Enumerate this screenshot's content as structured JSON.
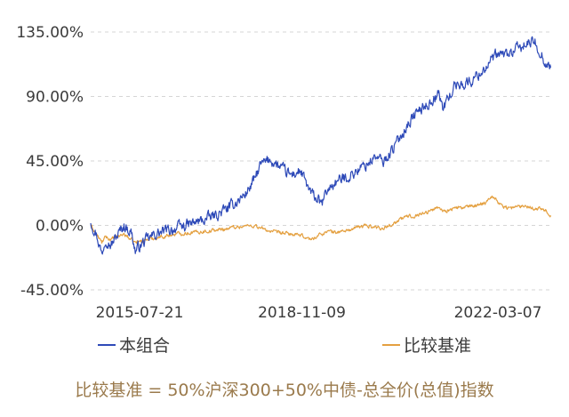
{
  "chart_data": {
    "type": "line",
    "y_ticks": [
      {
        "value": 135,
        "label": "135.00%"
      },
      {
        "value": 90,
        "label": "90.00%"
      },
      {
        "value": 45,
        "label": "45.00%"
      },
      {
        "value": 0,
        "label": "0.00%"
      },
      {
        "value": -45,
        "label": "-45.00%"
      }
    ],
    "x_ticks": [
      {
        "date": "2015-07-21",
        "label": "2015-07-21"
      },
      {
        "date": "2018-11-09",
        "label": "2018-11-09"
      },
      {
        "date": "2022-03-07",
        "label": "2022-03-07"
      }
    ],
    "ylim": [
      -45,
      135
    ],
    "grid": "horizontal dashed",
    "series": [
      {
        "name": "本组合",
        "color": "#2e4ab8",
        "points": [
          [
            "2015-05-01",
            3
          ],
          [
            "2015-06-01",
            -5
          ],
          [
            "2015-06-15",
            -10
          ],
          [
            "2015-07-08",
            -20
          ],
          [
            "2015-08-01",
            -8
          ],
          [
            "2015-09-01",
            -14
          ],
          [
            "2015-10-15",
            -6
          ],
          [
            "2015-11-20",
            0
          ],
          [
            "2016-01-05",
            -5
          ],
          [
            "2016-01-28",
            -18
          ],
          [
            "2016-03-15",
            -12
          ],
          [
            "2016-06-01",
            -6
          ],
          [
            "2016-09-01",
            -3
          ],
          [
            "2016-12-01",
            0
          ],
          [
            "2017-03-01",
            3
          ],
          [
            "2017-06-01",
            7
          ],
          [
            "2017-09-01",
            13
          ],
          [
            "2017-12-01",
            22
          ],
          [
            "2018-01-25",
            32
          ],
          [
            "2018-03-01",
            42
          ],
          [
            "2018-05-01",
            46
          ],
          [
            "2018-07-01",
            40
          ],
          [
            "2018-09-01",
            35
          ],
          [
            "2018-11-01",
            38
          ],
          [
            "2018-12-01",
            30
          ],
          [
            "2019-01-03",
            22
          ],
          [
            "2019-02-15",
            18
          ],
          [
            "2019-03-10",
            14
          ],
          [
            "2019-04-10",
            24
          ],
          [
            "2019-06-01",
            30
          ],
          [
            "2019-09-01",
            35
          ],
          [
            "2019-12-01",
            42
          ],
          [
            "2020-02-01",
            48
          ],
          [
            "2020-03-20",
            44
          ],
          [
            "2020-06-01",
            56
          ],
          [
            "2020-08-01",
            68
          ],
          [
            "2020-10-01",
            78
          ],
          [
            "2021-01-01",
            86
          ],
          [
            "2021-02-18",
            92
          ],
          [
            "2021-03-20",
            82
          ],
          [
            "2021-06-01",
            98
          ],
          [
            "2021-09-01",
            100
          ],
          [
            "2021-12-01",
            110
          ],
          [
            "2022-02-01",
            118
          ],
          [
            "2022-05-01",
            120
          ],
          [
            "2022-08-01",
            126
          ],
          [
            "2022-10-01",
            128
          ],
          [
            "2022-11-15",
            118
          ],
          [
            "2022-12-15",
            112
          ],
          [
            "2023-01-05",
            110
          ]
        ]
      },
      {
        "name": "比较基准",
        "color": "#e4a040",
        "points": [
          [
            "2015-05-01",
            0
          ],
          [
            "2015-06-15",
            -8
          ],
          [
            "2015-07-08",
            -12
          ],
          [
            "2015-08-01",
            -8
          ],
          [
            "2015-09-01",
            -10
          ],
          [
            "2015-11-20",
            -6
          ],
          [
            "2016-01-28",
            -12
          ],
          [
            "2016-04-01",
            -10
          ],
          [
            "2016-07-01",
            -8
          ],
          [
            "2016-10-01",
            -6
          ],
          [
            "2017-01-01",
            -5
          ],
          [
            "2017-04-01",
            -4
          ],
          [
            "2017-07-01",
            -3
          ],
          [
            "2017-10-01",
            -1
          ],
          [
            "2018-01-25",
            0
          ],
          [
            "2018-03-01",
            -2
          ],
          [
            "2018-06-01",
            -5
          ],
          [
            "2018-09-01",
            -6
          ],
          [
            "2018-12-01",
            -8
          ],
          [
            "2019-01-03",
            -10
          ],
          [
            "2019-04-10",
            -4
          ],
          [
            "2019-06-01",
            -5
          ],
          [
            "2019-09-01",
            -3
          ],
          [
            "2019-12-01",
            0
          ],
          [
            "2020-03-20",
            -2
          ],
          [
            "2020-06-01",
            2
          ],
          [
            "2020-08-01",
            6
          ],
          [
            "2020-10-01",
            7
          ],
          [
            "2021-01-01",
            10
          ],
          [
            "2021-02-18",
            13
          ],
          [
            "2021-03-20",
            10
          ],
          [
            "2021-06-01",
            12
          ],
          [
            "2021-09-01",
            13
          ],
          [
            "2021-12-01",
            16
          ],
          [
            "2022-01-15",
            21
          ],
          [
            "2022-03-07",
            14
          ],
          [
            "2022-05-01",
            12
          ],
          [
            "2022-08-01",
            14
          ],
          [
            "2022-10-01",
            12
          ],
          [
            "2022-12-01",
            11
          ],
          [
            "2023-01-05",
            7
          ]
        ]
      }
    ]
  },
  "legend": {
    "portfolio": "本组合",
    "benchmark": "比较基准"
  },
  "footnote": "比较基准 = 50%沪深300+50%中债-总全价(总值)指数"
}
